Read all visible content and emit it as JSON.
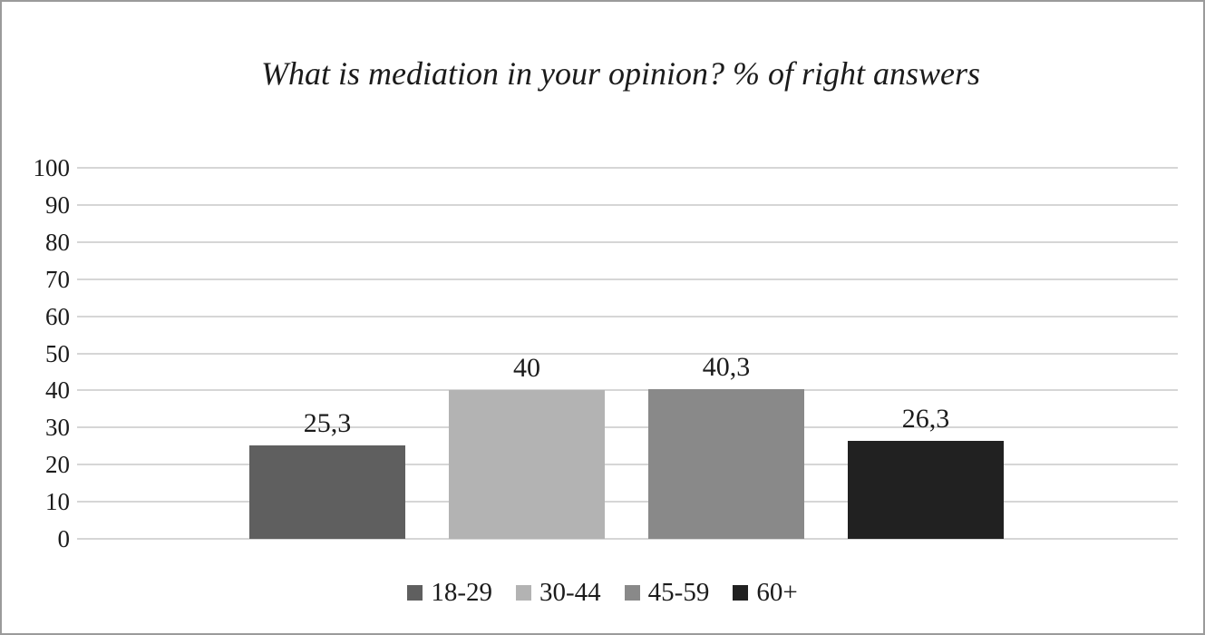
{
  "frame": {
    "background": "#ffffff",
    "border_color": "#9b9b9b"
  },
  "chart_data": {
    "type": "bar",
    "title": "What is mediation in your opinion? % of right answers",
    "categories": [
      "18-29",
      "30-44",
      "45-59",
      "60+"
    ],
    "values": [
      25.3,
      40,
      40.3,
      26.3
    ],
    "value_labels": [
      "25,3",
      "40",
      "40,3",
      "26,3"
    ],
    "bar_colors": [
      "#5f5f5f",
      "#b3b3b3",
      "#898989",
      "#212121"
    ],
    "xlabel": "",
    "ylabel": "",
    "ylim": [
      0,
      100
    ],
    "ytick_step": 10,
    "ytick_labels": [
      "0",
      "10",
      "20",
      "30",
      "40",
      "50",
      "60",
      "70",
      "80",
      "90",
      "100"
    ],
    "grid": "horizontal",
    "gridline_color": "#d6d6d6",
    "legend_position": "bottom",
    "legend_entries": [
      "18-29",
      "30-44",
      "45-59",
      "60+"
    ],
    "text_color": "#1b1b1b",
    "decimal_separator": ","
  }
}
